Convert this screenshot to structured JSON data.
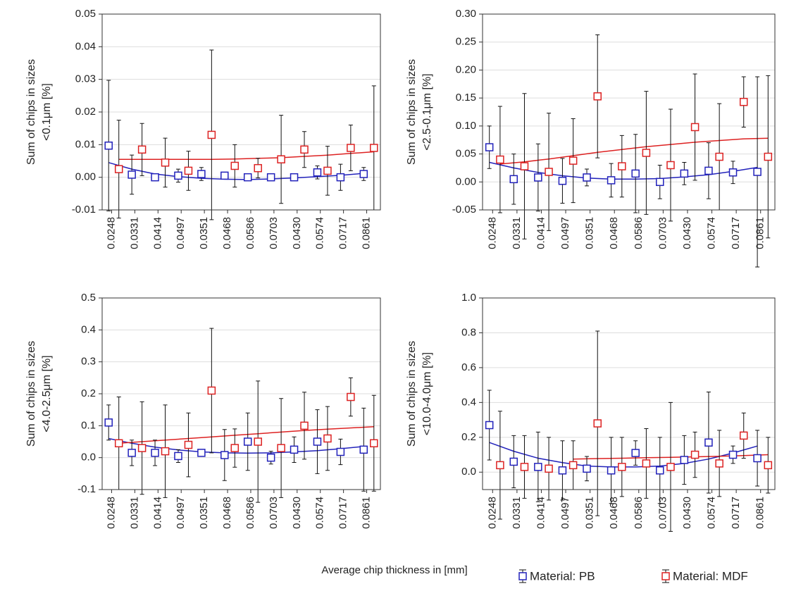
{
  "xlabel": "Average chip thickness in [mm]",
  "legend": [
    {
      "name": "Material: PB",
      "color": "#2222bb"
    },
    {
      "name": "Material: MDF",
      "color": "#dd2222"
    }
  ],
  "chart_data": [
    {
      "type": "errorbar",
      "ylabel": [
        "Sum of chips in sizes",
        "<0.1μm [%]"
      ],
      "categories": [
        "0.0248",
        "0.0331",
        "0.0414",
        "0.0497",
        "0.0351",
        "0.0468",
        "0.0586",
        "0.0703",
        "0.0430",
        "0.0574",
        "0.0717",
        "0.0861"
      ],
      "ylim": [
        -0.01,
        0.05
      ],
      "yticks": [
        -0.01,
        {
          "value": 0,
          "label": "0.00"
        },
        0.01,
        0.02,
        0.03,
        0.04,
        0.05
      ],
      "grid": true,
      "series": [
        {
          "values": [
            0.0097,
            0.0008,
            0.0,
            0.0005,
            0.001,
            0.0005,
            0.0,
            0.0,
            0.0,
            0.0015,
            0.0,
            0.001
          ],
          "errors": [
            0.02,
            0.006,
            0.001,
            0.002,
            0.002,
            0.001,
            0.001,
            0.001,
            0.001,
            0.002,
            0.004,
            0.002
          ],
          "trend": [
            0.0045,
            0.0025,
            0.001,
            0.0002,
            -0.0003,
            -0.0006,
            -0.0007,
            -0.0005,
            -0.0002,
            0.0002,
            0.0006,
            0.0012
          ]
        },
        {
          "values": [
            0.0025,
            0.0085,
            0.0045,
            0.002,
            0.013,
            0.0035,
            0.0028,
            0.0055,
            0.0085,
            0.002,
            0.009,
            0.009
          ],
          "errors": [
            0.015,
            0.008,
            0.0075,
            0.006,
            0.026,
            0.0065,
            0.003,
            0.0135,
            0.0055,
            0.0075,
            0.007,
            0.019
          ],
          "trend": [
            0.0055,
            0.0055,
            0.0055,
            0.0055,
            0.0055,
            0.0056,
            0.0058,
            0.006,
            0.0064,
            0.0068,
            0.0073,
            0.0078
          ]
        }
      ]
    },
    {
      "type": "errorbar",
      "ylabel": [
        "Sum of chips in sizes",
        "<2.5-0.1μm [%]"
      ],
      "categories": [
        "0.0248",
        "0.0331",
        "0.0414",
        "0.0497",
        "0.0351",
        "0.0468",
        "0.0586",
        "0.0703",
        "0.0430",
        "0.0574",
        "0.0717",
        "0.0861"
      ],
      "ylim": [
        -0.05,
        0.3
      ],
      "yticks": [
        -0.05,
        {
          "value": 0,
          "label": "0.00"
        },
        0.05,
        {
          "value": 0.1,
          "label": "0.10"
        },
        0.15,
        {
          "value": 0.2,
          "label": "0.20"
        },
        0.25,
        {
          "value": 0.3,
          "label": "0.30"
        }
      ],
      "grid": true,
      "series": [
        {
          "values": [
            0.062,
            0.005,
            0.008,
            0.002,
            0.008,
            0.003,
            0.015,
            0.0,
            0.015,
            0.02,
            0.017,
            0.018
          ],
          "errors": [
            0.038,
            0.045,
            0.06,
            0.04,
            0.015,
            0.03,
            0.07,
            0.03,
            0.02,
            0.05,
            0.02,
            0.17
          ],
          "trend": [
            0.035,
            0.025,
            0.017,
            0.011,
            0.007,
            0.005,
            0.005,
            0.006,
            0.009,
            0.013,
            0.019,
            0.026
          ]
        },
        {
          "values": [
            0.04,
            0.028,
            0.018,
            0.038,
            0.153,
            0.028,
            0.052,
            0.03,
            0.098,
            0.045,
            0.143,
            0.045
          ],
          "errors": [
            0.095,
            0.13,
            0.105,
            0.075,
            0.11,
            0.055,
            0.11,
            0.1,
            0.095,
            0.095,
            0.045,
            0.145
          ],
          "trend": [
            0.032,
            0.036,
            0.041,
            0.047,
            0.053,
            0.058,
            0.063,
            0.067,
            0.071,
            0.074,
            0.077,
            0.078
          ]
        }
      ]
    },
    {
      "type": "errorbar",
      "ylabel": [
        "Sum of chips in sizes",
        "<4.0-2.5μm [%]"
      ],
      "categories": [
        "0.0248",
        "0.0331",
        "0.0414",
        "0.0497",
        "0.0351",
        "0.0468",
        "0.0586",
        "0.0703",
        "0.0430",
        "0.0574",
        "0.0717",
        "0.0861"
      ],
      "ylim": [
        -0.1,
        0.5
      ],
      "yticks": [
        -0.1,
        {
          "value": 0,
          "label": "0.0"
        },
        0.1,
        0.2,
        0.3,
        0.4,
        0.5
      ],
      "grid": true,
      "series": [
        {
          "values": [
            0.11,
            0.015,
            0.015,
            0.005,
            0.015,
            0.008,
            0.05,
            0.0,
            0.025,
            0.05,
            0.018,
            0.025
          ],
          "errors": [
            0.055,
            0.04,
            0.04,
            0.02,
            0.01,
            0.08,
            0.09,
            0.02,
            0.04,
            0.1,
            0.04,
            0.13
          ],
          "trend": [
            0.06,
            0.045,
            0.033,
            0.024,
            0.018,
            0.015,
            0.014,
            0.015,
            0.018,
            0.022,
            0.028,
            0.035
          ]
        },
        {
          "values": [
            0.045,
            0.03,
            0.02,
            0.04,
            0.21,
            0.03,
            0.05,
            0.03,
            0.1,
            0.06,
            0.19,
            0.045
          ],
          "errors": [
            0.145,
            0.145,
            0.145,
            0.1,
            0.195,
            0.06,
            0.19,
            0.155,
            0.105,
            0.1,
            0.06,
            0.15
          ],
          "trend": [
            0.045,
            0.05,
            0.055,
            0.06,
            0.065,
            0.07,
            0.075,
            0.08,
            0.085,
            0.089,
            0.093,
            0.097
          ]
        }
      ]
    },
    {
      "type": "errorbar",
      "ylabel": [
        "Sum of chips in sizes",
        "<10.0-4.0μm [%]"
      ],
      "categories": [
        "0.0248",
        "0.0331",
        "0.0414",
        "0.0497",
        "0.0351",
        "0.0468",
        "0.0586",
        "0.0703",
        "0.0430",
        "0.0574",
        "0.0717",
        "0.0861"
      ],
      "ylim": [
        -0.1,
        1.0
      ],
      "yticks": [
        {
          "value": 0,
          "label": "0.0"
        },
        0.2,
        0.4,
        0.6,
        0.8,
        {
          "value": 1,
          "label": "1.0"
        }
      ],
      "grid": true,
      "series": [
        {
          "values": [
            0.27,
            0.06,
            0.03,
            0.01,
            0.02,
            0.01,
            0.11,
            0.01,
            0.07,
            0.17,
            0.1,
            0.08
          ],
          "errors": [
            0.2,
            0.15,
            0.2,
            0.17,
            0.07,
            0.19,
            0.07,
            0.19,
            0.14,
            0.29,
            0.05,
            0.16
          ],
          "trend": [
            0.17,
            0.12,
            0.08,
            0.055,
            0.035,
            0.03,
            0.03,
            0.035,
            0.05,
            0.075,
            0.11,
            0.15
          ]
        },
        {
          "values": [
            0.04,
            0.03,
            0.02,
            0.04,
            0.28,
            0.03,
            0.05,
            0.03,
            0.1,
            0.05,
            0.21,
            0.04
          ],
          "errors": [
            0.31,
            0.18,
            0.18,
            0.14,
            0.53,
            0.17,
            0.2,
            0.37,
            0.13,
            0.19,
            0.13,
            0.16
          ],
          "trend": [
            null,
            null,
            null,
            0.075,
            0.078,
            0.08,
            0.083,
            0.085,
            0.088,
            0.091,
            0.095,
            0.1
          ]
        }
      ]
    }
  ]
}
